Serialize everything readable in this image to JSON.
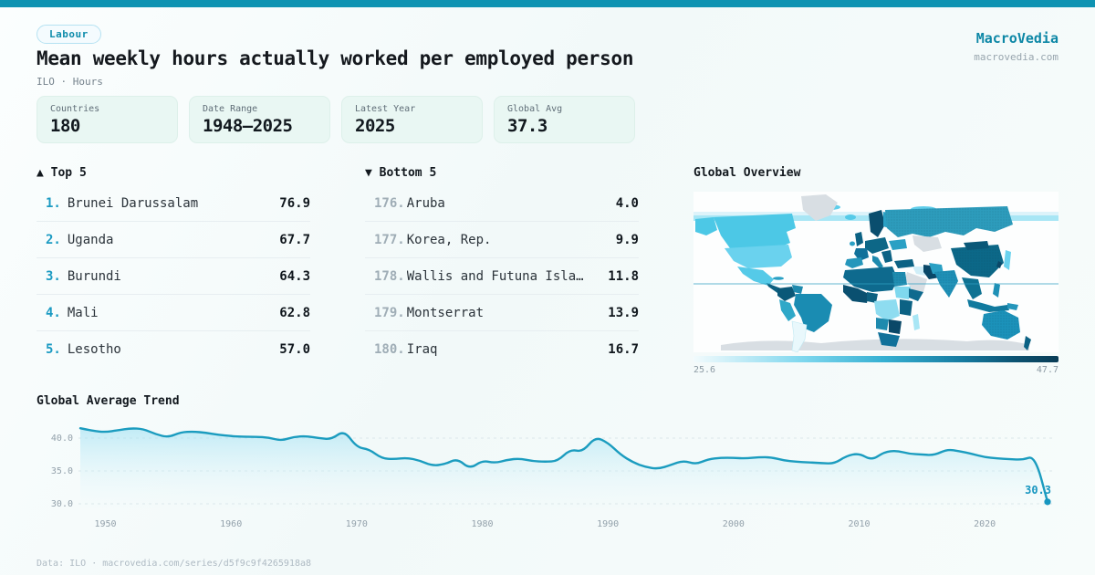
{
  "brand": {
    "name": "MacroVedia",
    "domain": "macrovedia.com"
  },
  "header": {
    "badge": "Labour",
    "title": "Mean weekly hours actually worked per employed person",
    "subtitle": "ILO · Hours"
  },
  "stats": [
    {
      "label": "Countries",
      "value": "180"
    },
    {
      "label": "Date Range",
      "value": "1948—2025"
    },
    {
      "label": "Latest Year",
      "value": "2025"
    },
    {
      "label": "Global Avg",
      "value": "37.3"
    }
  ],
  "top5": {
    "title": "▲ Top 5",
    "rows": [
      {
        "rank": "1.",
        "name": "Brunei Darussalam",
        "value": "76.9"
      },
      {
        "rank": "2.",
        "name": "Uganda",
        "value": "67.7"
      },
      {
        "rank": "3.",
        "name": "Burundi",
        "value": "64.3"
      },
      {
        "rank": "4.",
        "name": "Mali",
        "value": "62.8"
      },
      {
        "rank": "5.",
        "name": "Lesotho",
        "value": "57.0"
      }
    ]
  },
  "bottom5": {
    "title": "▼ Bottom 5",
    "rows": [
      {
        "rank": "176.",
        "name": "Aruba",
        "value": "4.0"
      },
      {
        "rank": "177.",
        "name": "Korea, Rep.",
        "value": "9.9"
      },
      {
        "rank": "178.",
        "name": "Wallis and Futuna Isla…",
        "value": "11.8"
      },
      {
        "rank": "179.",
        "name": "Montserrat",
        "value": "13.9"
      },
      {
        "rank": "180.",
        "name": "Iraq",
        "value": "16.7"
      }
    ]
  },
  "map": {
    "title": "Global Overview",
    "legend_min": "25.6",
    "legend_max": "47.7"
  },
  "trend": {
    "title": "Global Average Trend",
    "end_label": "30.3"
  },
  "footer": {
    "text": "Data: ILO · macrovedia.com/series/d5f9c9f4265918a8"
  },
  "colors": {
    "accent": "#0e93b2",
    "line": "#1b9cbf",
    "end_label": "#1796c0",
    "legend_min_color": "#f2fbfd",
    "legend_max_color": "#0a3c55",
    "card_bg": "#e9f7f3",
    "nodata": "#d8dee3"
  },
  "chart_data": [
    {
      "type": "line",
      "title": "Global Average Trend",
      "x": [
        1948,
        1949,
        1950,
        1951,
        1952,
        1953,
        1954,
        1955,
        1956,
        1957,
        1958,
        1959,
        1960,
        1961,
        1962,
        1963,
        1964,
        1965,
        1966,
        1967,
        1968,
        1969,
        1970,
        1971,
        1972,
        1973,
        1974,
        1975,
        1976,
        1977,
        1978,
        1979,
        1980,
        1981,
        1982,
        1983,
        1984,
        1985,
        1986,
        1987,
        1988,
        1989,
        1990,
        1991,
        1992,
        1993,
        1994,
        1995,
        1996,
        1997,
        1998,
        1999,
        2000,
        2001,
        2002,
        2003,
        2004,
        2005,
        2006,
        2007,
        2008,
        2009,
        2010,
        2011,
        2012,
        2013,
        2014,
        2015,
        2016,
        2017,
        2018,
        2019,
        2020,
        2021,
        2022,
        2023,
        2024,
        2025
      ],
      "values": [
        41.5,
        41.1,
        40.9,
        41.2,
        41.5,
        41.4,
        40.6,
        40.1,
        40.9,
        41.0,
        40.8,
        40.5,
        40.3,
        40.2,
        40.2,
        40.1,
        39.6,
        40.2,
        40.3,
        40.0,
        39.8,
        41.2,
        38.6,
        38.3,
        36.9,
        36.8,
        37.0,
        36.6,
        35.8,
        36.0,
        36.9,
        35.3,
        36.6,
        36.2,
        36.7,
        36.9,
        36.5,
        36.4,
        36.5,
        38.3,
        37.9,
        40.2,
        39.3,
        37.5,
        36.3,
        35.6,
        35.3,
        35.9,
        36.6,
        36.0,
        36.8,
        37.0,
        37.0,
        36.9,
        37.1,
        37.1,
        36.6,
        36.4,
        36.3,
        36.2,
        36.1,
        37.3,
        37.7,
        36.6,
        37.9,
        38.1,
        37.6,
        37.5,
        37.4,
        38.3,
        38.0,
        37.6,
        37.1,
        36.9,
        36.8,
        36.7,
        37.3,
        30.3
      ],
      "xticks": [
        1950,
        1960,
        1970,
        1980,
        1990,
        2000,
        2010,
        2020
      ],
      "yticks": [
        "30.0",
        "35.0",
        "40.0"
      ],
      "ylim": [
        28.5,
        43
      ],
      "grid": true,
      "legend": "none",
      "end_label": "30.3",
      "area_fill": true
    },
    {
      "type": "heatmap",
      "title": "Global Overview",
      "colorbar": {
        "min": 25.6,
        "max": 47.7
      },
      "high_values": {
        "Brunei Darussalam": 76.9,
        "Uganda": 67.7,
        "Burundi": 64.3,
        "Mali": 62.8,
        "Lesotho": 57.0
      },
      "low_values": {
        "Aruba": 4.0,
        "Korea, Rep.": 9.9,
        "Wallis and Futuna Islands": 11.8,
        "Montserrat": 13.9,
        "Iraq": 16.7
      }
    }
  ]
}
